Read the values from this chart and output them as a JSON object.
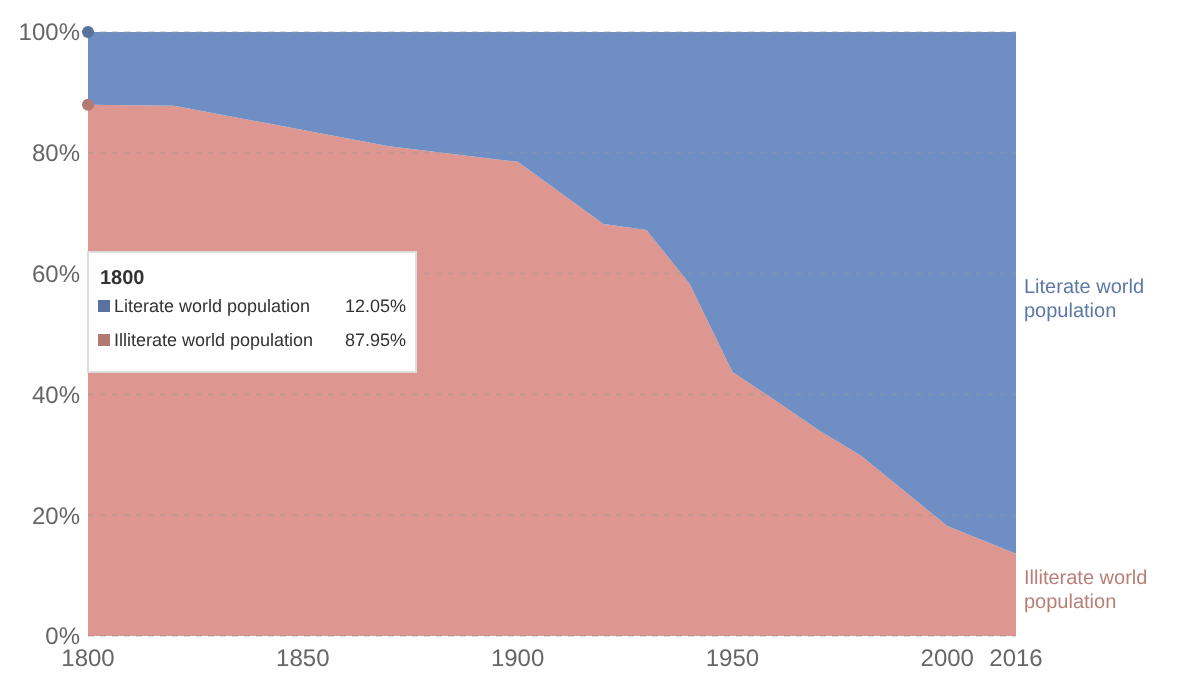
{
  "chart_data": {
    "type": "area",
    "stacked": true,
    "x": [
      1800,
      1820,
      1870,
      1900,
      1920,
      1930,
      1940,
      1950,
      1960,
      1970,
      1980,
      1990,
      2000,
      2016
    ],
    "series": [
      {
        "name": "Illiterate world population",
        "color": "#de9790",
        "values": [
          87.95,
          87.8,
          81.1,
          78.5,
          68.2,
          67.2,
          58.3,
          43.7,
          39,
          34.1,
          29.8,
          24,
          18.2,
          13.6
        ]
      },
      {
        "name": "Literate world population",
        "color": "#6f8fc4",
        "values": [
          12.05,
          12.2,
          18.9,
          21.5,
          31.8,
          32.8,
          41.7,
          56.3,
          61,
          65.9,
          70.2,
          76,
          81.8,
          86.4
        ]
      }
    ],
    "xlim": [
      1800,
      2016
    ],
    "xticks": [
      1800,
      1850,
      1900,
      1950,
      2000,
      2016
    ],
    "ylim": [
      0,
      100
    ],
    "yticks": [
      {
        "value": 0,
        "label": "0%"
      },
      {
        "value": 20,
        "label": "20%"
      },
      {
        "value": 40,
        "label": "40%"
      },
      {
        "value": 60,
        "label": "60%"
      },
      {
        "value": 80,
        "label": "80%"
      },
      {
        "value": 100,
        "label": "100%"
      }
    ],
    "grid": "y",
    "legend": "left",
    "annotations": [
      "1800",
      "12.05%",
      "87.95%"
    ]
  }
}
